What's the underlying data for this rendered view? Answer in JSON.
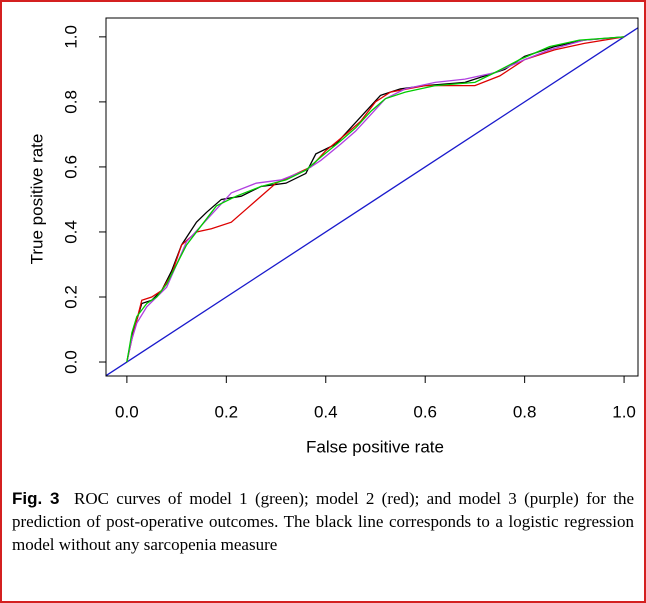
{
  "chart_data": {
    "type": "line",
    "xlabel": "False positive rate",
    "ylabel": "True positive rate",
    "xlim": [
      -0.042,
      1.028
    ],
    "ylim": [
      -0.043,
      1.058
    ],
    "xticks": [
      {
        "value": 0,
        "label": "0.0"
      },
      {
        "value": 0.2,
        "label": "0.2"
      },
      {
        "value": 0.4,
        "label": "0.4"
      },
      {
        "value": 0.6,
        "label": "0.6"
      },
      {
        "value": 0.8,
        "label": "0.8"
      },
      {
        "value": 1,
        "label": "1.0"
      }
    ],
    "yticks": [
      {
        "value": 0,
        "label": "0.0"
      },
      {
        "value": 0.2,
        "label": "0.2"
      },
      {
        "value": 0.4,
        "label": "0.4"
      },
      {
        "value": 0.6,
        "label": "0.6"
      },
      {
        "value": 0.8,
        "label": "0.8"
      },
      {
        "value": 1,
        "label": "1.0"
      }
    ],
    "diagonal_color": "#1a1acc",
    "series": [
      {
        "color": "#000000",
        "x": [
          0,
          0.01,
          0.02,
          0.03,
          0.05,
          0.07,
          0.09,
          0.11,
          0.14,
          0.16,
          0.19,
          0.23,
          0.27,
          0.32,
          0.36,
          0.38,
          0.42,
          0.45,
          0.48,
          0.51,
          0.55,
          0.6,
          0.68,
          0.72,
          0.76,
          0.8,
          0.86,
          0.92,
          1
        ],
        "values": [
          0,
          0.08,
          0.13,
          0.18,
          0.19,
          0.22,
          0.28,
          0.36,
          0.43,
          0.46,
          0.5,
          0.51,
          0.54,
          0.55,
          0.58,
          0.64,
          0.67,
          0.72,
          0.77,
          0.82,
          0.84,
          0.85,
          0.86,
          0.88,
          0.9,
          0.94,
          0.97,
          0.99,
          1
        ]
      },
      {
        "color": "#dd0000",
        "x": [
          0,
          0.01,
          0.02,
          0.03,
          0.05,
          0.07,
          0.09,
          0.11,
          0.14,
          0.17,
          0.21,
          0.24,
          0.3,
          0.37,
          0.4,
          0.44,
          0.47,
          0.5,
          0.53,
          0.6,
          0.7,
          0.75,
          0.8,
          0.86,
          0.92,
          1
        ],
        "values": [
          0,
          0.07,
          0.13,
          0.19,
          0.2,
          0.22,
          0.27,
          0.36,
          0.4,
          0.41,
          0.43,
          0.47,
          0.55,
          0.6,
          0.65,
          0.7,
          0.74,
          0.8,
          0.83,
          0.85,
          0.85,
          0.88,
          0.93,
          0.96,
          0.98,
          1
        ]
      },
      {
        "color": "#b040e0",
        "x": [
          0,
          0.01,
          0.02,
          0.04,
          0.06,
          0.08,
          0.1,
          0.12,
          0.15,
          0.18,
          0.21,
          0.26,
          0.31,
          0.36,
          0.39,
          0.43,
          0.46,
          0.49,
          0.52,
          0.56,
          0.62,
          0.68,
          0.74,
          0.8,
          0.85,
          0.92,
          1
        ],
        "values": [
          0,
          0.07,
          0.12,
          0.17,
          0.2,
          0.23,
          0.3,
          0.37,
          0.42,
          0.47,
          0.52,
          0.55,
          0.56,
          0.59,
          0.62,
          0.67,
          0.71,
          0.76,
          0.81,
          0.84,
          0.86,
          0.87,
          0.89,
          0.93,
          0.96,
          0.99,
          1
        ]
      },
      {
        "color": "#00cc00",
        "x": [
          0,
          0.01,
          0.02,
          0.04,
          0.06,
          0.08,
          0.1,
          0.12,
          0.15,
          0.18,
          0.22,
          0.27,
          0.32,
          0.36,
          0.39,
          0.43,
          0.46,
          0.49,
          0.52,
          0.56,
          0.62,
          0.7,
          0.74,
          0.79,
          0.85,
          0.91,
          1
        ],
        "values": [
          0,
          0.09,
          0.14,
          0.18,
          0.2,
          0.24,
          0.3,
          0.36,
          0.42,
          0.48,
          0.51,
          0.54,
          0.56,
          0.59,
          0.63,
          0.68,
          0.72,
          0.77,
          0.81,
          0.83,
          0.85,
          0.86,
          0.89,
          0.93,
          0.97,
          0.99,
          1
        ]
      }
    ]
  },
  "caption": {
    "label": "Fig. 3",
    "text": "ROC curves of model 1 (green); model 2 (red); and model 3 (purple) for the prediction of post-operative outcomes. The black line corresponds to a logistic regression model without any sarcopenia measure"
  }
}
